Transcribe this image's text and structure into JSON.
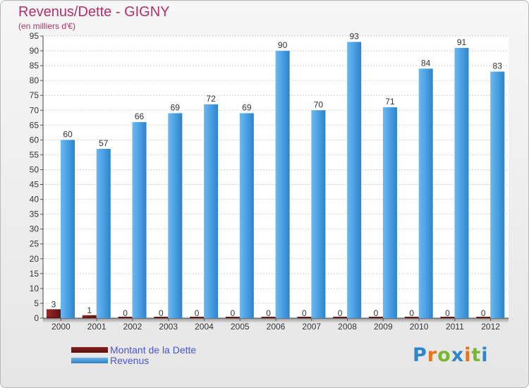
{
  "chart_data": {
    "type": "bar",
    "title": "Revenus/Dette - GIGNY",
    "subtitle": "(en milliers d'€)",
    "xlabel": "",
    "ylabel": "",
    "ylim": [
      0,
      95
    ],
    "ytick_step": 5,
    "grid": true,
    "legend_position": "bottom-left",
    "categories": [
      "2000",
      "2001",
      "2002",
      "2003",
      "2004",
      "2005",
      "2006",
      "2007",
      "2008",
      "2009",
      "2010",
      "2011",
      "2012"
    ],
    "series": [
      {
        "name": "Montant de la Dette",
        "color": "#7a1a1a",
        "values": [
          3,
          1,
          0,
          0,
          0,
          0,
          0,
          0,
          0,
          0,
          0,
          0,
          0
        ]
      },
      {
        "name": "Revenus",
        "color": "#4a9de0",
        "values": [
          60,
          57,
          66,
          69,
          72,
          69,
          90,
          70,
          93,
          71,
          84,
          91,
          83
        ]
      }
    ]
  },
  "logo": {
    "text": "Proxiti",
    "colors": [
      "#2e86c8",
      "#e8731c",
      "#7ab630",
      "#2e86c8",
      "#e8731c",
      "#7ab630",
      "#2e86c8"
    ]
  }
}
